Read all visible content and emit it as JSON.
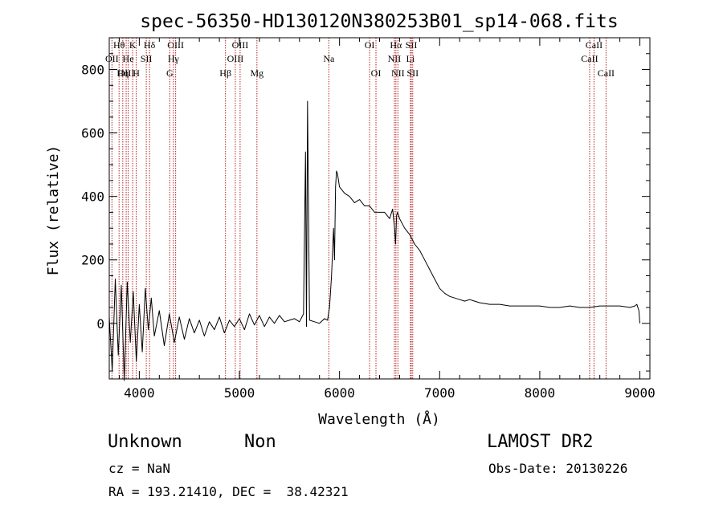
{
  "chart_data": {
    "type": "line",
    "title": "spec-56350-HD130120N380253B01_sp14-068.fits",
    "xlabel": "Wavelength (Å)",
    "ylabel": "Flux (relative)",
    "xlim": [
      3700,
      9100
    ],
    "ylim": [
      -175,
      900
    ],
    "x_ticks": [
      4000,
      5000,
      6000,
      7000,
      8000,
      9000
    ],
    "y_ticks": [
      0,
      200,
      400,
      600,
      800
    ],
    "grid": false,
    "legend": "none",
    "series_color": "#000000",
    "line_color": "#b22222",
    "series": [
      {
        "x": [
          3700,
          3730,
          3760,
          3790,
          3820,
          3850,
          3880,
          3910,
          3940,
          3970,
          4000,
          4030,
          4060,
          4090,
          4120,
          4150,
          4200,
          4250,
          4300,
          4350,
          4400,
          4450,
          4500,
          4550,
          4600,
          4650,
          4700,
          4750,
          4800,
          4850,
          4900,
          4950,
          5000,
          5050,
          5100,
          5150,
          5200,
          5250,
          5300,
          5350,
          5400,
          5450,
          5500,
          5550,
          5600,
          5640,
          5660,
          5670,
          5680,
          5700,
          5750,
          5800,
          5850,
          5880,
          5900,
          5920,
          5940,
          5950,
          5960,
          5970,
          5980,
          6000,
          6050,
          6100,
          6150,
          6200,
          6250,
          6300,
          6350,
          6400,
          6450,
          6500,
          6530,
          6550,
          6560,
          6570,
          6580,
          6600,
          6650,
          6700,
          6750,
          6800,
          6850,
          6900,
          6950,
          7000,
          7050,
          7100,
          7150,
          7200,
          7250,
          7300,
          7350,
          7400,
          7500,
          7600,
          7700,
          7800,
          7900,
          8000,
          8100,
          8200,
          8300,
          8400,
          8500,
          8600,
          8700,
          8800,
          8900,
          8950,
          8970,
          8990,
          9000
        ],
        "y": [
          20,
          -150,
          140,
          -100,
          120,
          -180,
          130,
          -60,
          100,
          -120,
          60,
          -90,
          110,
          -20,
          80,
          -40,
          40,
          -70,
          30,
          -60,
          20,
          -50,
          15,
          -30,
          10,
          -40,
          5,
          -20,
          20,
          -30,
          10,
          -10,
          15,
          -20,
          30,
          -5,
          25,
          -10,
          20,
          0,
          25,
          5,
          10,
          15,
          5,
          30,
          540,
          -10,
          700,
          10,
          5,
          0,
          15,
          10,
          50,
          150,
          300,
          200,
          430,
          480,
          470,
          430,
          410,
          400,
          380,
          390,
          370,
          370,
          350,
          350,
          350,
          330,
          360,
          300,
          250,
          340,
          350,
          330,
          300,
          280,
          250,
          230,
          200,
          170,
          140,
          110,
          95,
          85,
          80,
          75,
          70,
          75,
          70,
          65,
          60,
          60,
          55,
          55,
          55,
          55,
          50,
          50,
          55,
          50,
          50,
          55,
          55,
          55,
          50,
          55,
          60,
          40,
          0
        ]
      }
    ],
    "spectral_lines": [
      {
        "label": "Hθ",
        "x": 3798,
        "row": 0
      },
      {
        "label": "OII",
        "x": 3727,
        "row": 1
      },
      {
        "label": "OIII",
        "x": 3869,
        "row": 2
      },
      {
        "label": "He",
        "x": 3889,
        "row": 1
      },
      {
        "label": "K",
        "x": 3934,
        "row": 0
      },
      {
        "label": "Hη",
        "x": 3835,
        "row": 2
      },
      {
        "label": "H",
        "x": 3969,
        "row": 2
      },
      {
        "label": "SII",
        "x": 4070,
        "row": 1
      },
      {
        "label": "Hδ",
        "x": 4102,
        "row": 0
      },
      {
        "label": "OIII",
        "x": 4363,
        "row": 0
      },
      {
        "label": "Hγ",
        "x": 4341,
        "row": 1
      },
      {
        "label": "G",
        "x": 4304,
        "row": 2
      },
      {
        "label": "Hβ",
        "x": 4861,
        "row": 2
      },
      {
        "label": "OIII",
        "x": 4959,
        "row": 1
      },
      {
        "label": "OIII",
        "x": 5007,
        "row": 0
      },
      {
        "label": "Mg",
        "x": 5175,
        "row": 2
      },
      {
        "label": "Na",
        "x": 5893,
        "row": 1
      },
      {
        "label": "OI",
        "x": 6300,
        "row": 0
      },
      {
        "label": "OI",
        "x": 6364,
        "row": 2
      },
      {
        "label": "NII",
        "x": 6548,
        "row": 1
      },
      {
        "label": "Hα",
        "x": 6563,
        "row": 0
      },
      {
        "label": "NII",
        "x": 6583,
        "row": 2
      },
      {
        "label": "SII",
        "x": 6717,
        "row": 0
      },
      {
        "label": "Li",
        "x": 6708,
        "row": 1
      },
      {
        "label": "SII",
        "x": 6731,
        "row": 2
      },
      {
        "label": "CaII",
        "x": 8498,
        "row": 1
      },
      {
        "label": "CaII",
        "x": 8542,
        "row": 0
      },
      {
        "label": "CaII",
        "x": 8662,
        "row": 2
      }
    ]
  },
  "info": {
    "object_class": "Unknown",
    "subclass": "Non",
    "survey": "LAMOST DR2",
    "redshift": "cz = NaN",
    "obs_date": "Obs-Date: 20130226",
    "coordinates": "RA = 193.21410, DEC =  38.42321"
  }
}
